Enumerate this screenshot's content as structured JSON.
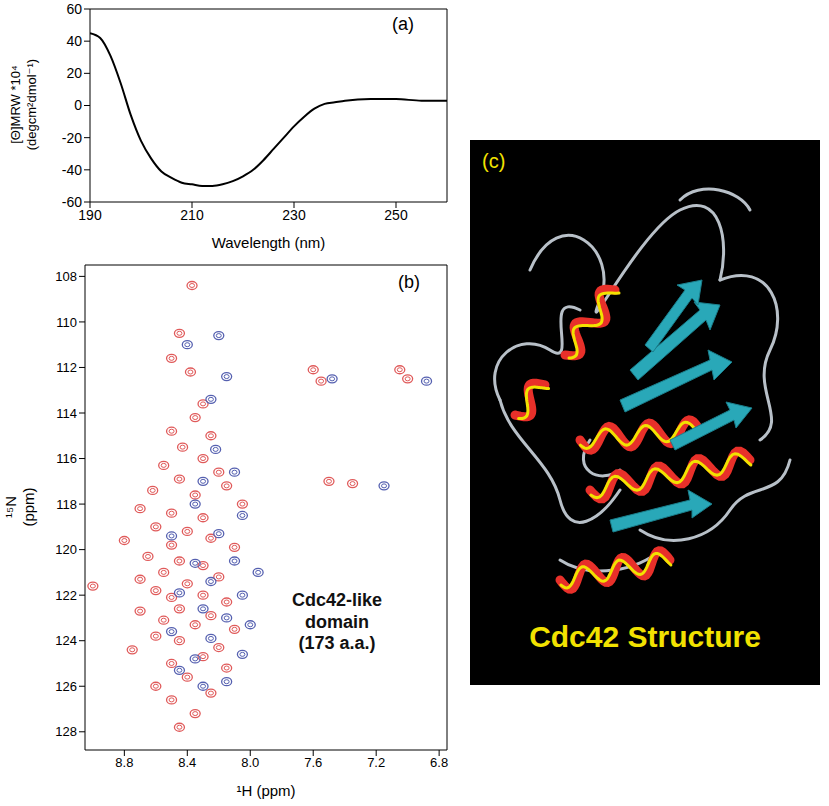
{
  "chart_data": [
    {
      "type": "line",
      "panel": "(a)",
      "x_label": "Wavelength (nm)",
      "y_label": "[Θ]MRW *10⁴ (degcm²dmol⁻¹)",
      "x": [
        190,
        192,
        194,
        196,
        198,
        200,
        202,
        204,
        206,
        208,
        210,
        212,
        214,
        216,
        218,
        220,
        222,
        224,
        226,
        228,
        230,
        232,
        234,
        236,
        238,
        240,
        245,
        250,
        255,
        260
      ],
      "values": [
        45,
        42,
        31,
        14,
        -6,
        -22,
        -33,
        -41,
        -45,
        -48,
        -49,
        -50,
        -50,
        -49,
        -47,
        -44,
        -40,
        -34,
        -27,
        -20,
        -13,
        -7,
        -2,
        1,
        2,
        3,
        4,
        4,
        3,
        3
      ],
      "color": "#000000",
      "xlim": [
        190,
        260
      ],
      "xticks": [
        190,
        210,
        230,
        250
      ],
      "ylim": [
        -60,
        60
      ],
      "yticks": [
        -60,
        -40,
        -20,
        0,
        20,
        40,
        60
      ]
    },
    {
      "type": "scatter",
      "panel": "(b)",
      "x_label": "¹H (ppm)",
      "y_label": "¹⁵N (ppm)",
      "annotation": [
        "Cdc42-like",
        "domain",
        "(173 a.a.)"
      ],
      "xlim": [
        9.05,
        6.75
      ],
      "xticks": [
        8.8,
        8.4,
        {
          "value": 8,
          "label": "8.0"
        },
        7.6,
        7.2,
        6.8
      ],
      "ylim": [
        128.8,
        107.5
      ],
      "yticks": [
        108,
        110,
        112,
        114,
        116,
        118,
        120,
        122,
        124,
        126,
        128
      ],
      "series": [
        {
          "color": "#e05a5a",
          "x": [
            8.37,
            8.45,
            8.5,
            8.38,
            7.6,
            7.55,
            7.05,
            7.0,
            8.3,
            8.35,
            8.5,
            8.25,
            8.43,
            8.3,
            8.55,
            8.2,
            8.45,
            8.62,
            8.35,
            8.15,
            7.35,
            7.5,
            8.7,
            8.5,
            8.3,
            8.05,
            8.6,
            8.4,
            8.25,
            8.8,
            8.5,
            8.1,
            8.65,
            8.45,
            8.3,
            8.55,
            8.2,
            8.7,
            8.4,
            8.6,
            8.3,
            8.5,
            8.15,
            8.45,
            8.7,
            8.25,
            8.55,
            8.35,
            8.1,
            8.6,
            8.45,
            8.2,
            8.75,
            8.3,
            8.5,
            8.15,
            8.4,
            8.6,
            8.25,
            8.5,
            8.35,
            8.45,
            9.0
          ],
          "y": [
            108.4,
            110.5,
            111.6,
            112.2,
            112.1,
            112.6,
            112.1,
            112.5,
            113.6,
            114.2,
            114.8,
            115.0,
            115.5,
            116.0,
            116.3,
            116.6,
            116.9,
            117.4,
            117.6,
            117.2,
            117.1,
            117.0,
            118.2,
            118.4,
            118.6,
            118.0,
            119.0,
            119.2,
            119.5,
            119.6,
            119.8,
            119.9,
            120.3,
            120.5,
            120.7,
            121.0,
            121.2,
            121.3,
            121.5,
            121.8,
            122.0,
            122.1,
            122.3,
            122.6,
            122.7,
            122.9,
            123.1,
            123.3,
            123.5,
            123.8,
            124.0,
            124.3,
            124.4,
            124.7,
            125.0,
            125.2,
            125.6,
            126.0,
            126.3,
            126.6,
            127.2,
            127.8,
            121.6
          ]
        },
        {
          "color": "#5560b0",
          "x": [
            8.2,
            8.4,
            8.15,
            7.48,
            6.88,
            8.25,
            8.22,
            8.1,
            8.3,
            7.15,
            8.35,
            8.05,
            8.2,
            8.5,
            8.1,
            8.35,
            7.95,
            8.25,
            8.45,
            8.05,
            8.3,
            8.15,
            8.5,
            8.0,
            8.25,
            8.35,
            8.05,
            8.45,
            8.3,
            8.15
          ],
          "y": [
            110.6,
            111.0,
            112.4,
            112.5,
            112.6,
            113.4,
            115.6,
            116.6,
            117.0,
            117.2,
            118.0,
            118.5,
            119.3,
            119.4,
            120.5,
            120.6,
            121.0,
            121.4,
            121.9,
            122.0,
            122.6,
            123.0,
            123.6,
            123.3,
            123.9,
            124.8,
            124.6,
            125.3,
            126.0,
            125.8
          ]
        }
      ]
    }
  ],
  "panel_c": {
    "label": "(c)",
    "title": "Cdc42 Structure"
  }
}
